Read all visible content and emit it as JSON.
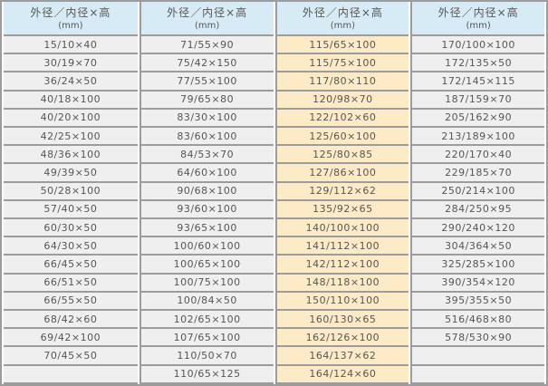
{
  "colors": {
    "header_bg": "#d6ebf5",
    "row_bg": "#efefef",
    "highlight_bg": "#fdeac6",
    "border": "#9c9c9c",
    "text": "#565656",
    "background": "#ffffff"
  },
  "table": {
    "headers": [
      {
        "title": "外径／内径×高",
        "unit": "(mm)"
      },
      {
        "title": "外径／内径×高",
        "unit": "(mm)"
      },
      {
        "title": "外径／内径×高",
        "unit": "(mm)"
      },
      {
        "title": "外径／内径×高",
        "unit": "(mm)"
      }
    ],
    "columns": [
      {
        "highlight": false,
        "rows": [
          "15/10×40",
          "30/19×70",
          "36/24×50",
          "40/18×100",
          "40/20×100",
          "42/25×100",
          "48/36×100",
          "49/39×50",
          "50/28×100",
          "57/40×50",
          "60/30×50",
          "64/30×50",
          "66/45×50",
          "66/51×50",
          "66/55×50",
          "68/42×60",
          "69/42×100",
          "70/45×50",
          ""
        ]
      },
      {
        "highlight": false,
        "rows": [
          "71/55×90",
          "75/42×150",
          "77/55×100",
          "79/65×80",
          "83/30×100",
          "83/60×100",
          "84/53×70",
          "64/60×100",
          "90/68×100",
          "93/60×100",
          "93/65×100",
          "100/60×100",
          "100/65×100",
          "100/75×100",
          "100/84×50",
          "102/65×100",
          "107/65×100",
          "110/50×70",
          "110/65×125"
        ]
      },
      {
        "highlight": true,
        "rows": [
          "115/65×100",
          "115/75×100",
          "117/80×110",
          "120/98×70",
          "122/102×60",
          "125/60×100",
          "125/80×85",
          "127/86×100",
          "129/112×62",
          "135/92×65",
          "140/100×100",
          "141/112×100",
          "142/112×100",
          "148/118×100",
          "150/110×100",
          "160/130×65",
          "162/126×100",
          "164/137×62",
          "164/124×60"
        ]
      },
      {
        "highlight": false,
        "rows": [
          "170/100×100",
          "172/135×50",
          "172/145×115",
          "187/159×70",
          "205/162×90",
          "213/189×100",
          "220/170×40",
          "229/185×70",
          "250/214×100",
          "284/250×95",
          "290/240×120",
          "304/364×50",
          "325/285×100",
          "390/354×120",
          "395/355×50",
          "516/468×80",
          "578/530×90",
          "",
          ""
        ]
      }
    ]
  }
}
